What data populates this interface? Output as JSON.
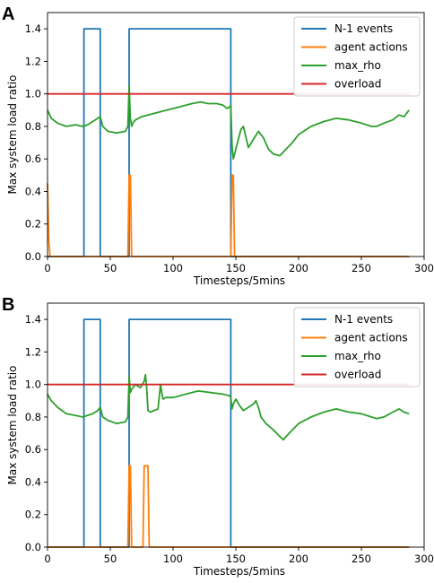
{
  "chart_data": [
    {
      "panel_label": "A",
      "type": "line",
      "xlabel": "Timesteps/5mins",
      "ylabel": "Max system load ratio",
      "xlim": [
        0,
        300
      ],
      "ylim": [
        0,
        1.5
      ],
      "xticks": [
        "0",
        "50",
        "100",
        "150",
        "200",
        "250",
        "300"
      ],
      "yticks": [
        "0.0",
        "0.2",
        "0.4",
        "0.6",
        "0.8",
        "1.0",
        "1.2",
        "1.4"
      ],
      "legend_position": "top-right",
      "series": [
        {
          "name": "N-1 events",
          "color": "#1f77b4",
          "x": [
            0,
            29,
            29,
            42,
            42,
            65,
            65,
            146,
            146,
            288
          ],
          "y": [
            0,
            0,
            1.4,
            1.4,
            0,
            0,
            1.4,
            1.4,
            0,
            0
          ]
        },
        {
          "name": "agent actions",
          "color": "#ff7f0e",
          "x": [
            0,
            1,
            2,
            64,
            65,
            66,
            67,
            146,
            147,
            148,
            149,
            288
          ],
          "y": [
            0.45,
            0.1,
            0,
            0,
            0.5,
            0.5,
            0,
            0,
            0.5,
            0.5,
            0,
            0
          ]
        },
        {
          "name": "max_rho",
          "color": "#2ca02c",
          "x": [
            0,
            3,
            8,
            15,
            22,
            28,
            32,
            36,
            40,
            42,
            44,
            48,
            55,
            62,
            64,
            65,
            66,
            67,
            68,
            70,
            75,
            85,
            95,
            105,
            115,
            122,
            128,
            135,
            140,
            143,
            145,
            146,
            147,
            148,
            150,
            152,
            154,
            156,
            160,
            164,
            168,
            172,
            176,
            180,
            185,
            190,
            195,
            200,
            210,
            220,
            230,
            240,
            250,
            258,
            262,
            268,
            275,
            280,
            284,
            286,
            288
          ],
          "y": [
            0.9,
            0.85,
            0.82,
            0.8,
            0.81,
            0.8,
            0.81,
            0.83,
            0.85,
            0.86,
            0.8,
            0.77,
            0.76,
            0.77,
            0.8,
            1.05,
            0.85,
            0.8,
            0.82,
            0.84,
            0.86,
            0.88,
            0.9,
            0.92,
            0.94,
            0.95,
            0.94,
            0.94,
            0.93,
            0.91,
            0.92,
            0.93,
            0.68,
            0.6,
            0.66,
            0.72,
            0.78,
            0.8,
            0.67,
            0.72,
            0.77,
            0.73,
            0.66,
            0.63,
            0.62,
            0.66,
            0.7,
            0.75,
            0.8,
            0.83,
            0.85,
            0.84,
            0.82,
            0.8,
            0.8,
            0.82,
            0.84,
            0.87,
            0.86,
            0.88,
            0.9
          ]
        },
        {
          "name": "overload",
          "color": "#d62728",
          "x": [
            0,
            288
          ],
          "y": [
            1.0,
            1.0
          ]
        }
      ]
    },
    {
      "panel_label": "B",
      "type": "line",
      "xlabel": "Timesteps/5mins",
      "ylabel": "Max system load ratio",
      "xlim": [
        0,
        300
      ],
      "ylim": [
        0,
        1.5
      ],
      "xticks": [
        "0",
        "50",
        "100",
        "150",
        "200",
        "250",
        "300"
      ],
      "yticks": [
        "0.0",
        "0.2",
        "0.4",
        "0.6",
        "0.8",
        "1.0",
        "1.2",
        "1.4"
      ],
      "legend_position": "top-right",
      "series": [
        {
          "name": "N-1 events",
          "color": "#1f77b4",
          "x": [
            0,
            29,
            29,
            42,
            42,
            65,
            65,
            146,
            146,
            288
          ],
          "y": [
            0,
            0,
            1.4,
            1.4,
            0,
            0,
            1.4,
            1.4,
            0,
            0
          ]
        },
        {
          "name": "agent actions",
          "color": "#ff7f0e",
          "x": [
            0,
            64,
            65,
            66,
            67,
            76,
            77,
            80,
            81,
            288
          ],
          "y": [
            0,
            0,
            0.5,
            0.5,
            0,
            0,
            0.5,
            0.5,
            0,
            0
          ]
        },
        {
          "name": "max_rho",
          "color": "#2ca02c",
          "x": [
            0,
            3,
            8,
            15,
            22,
            28,
            32,
            36,
            40,
            42,
            44,
            48,
            55,
            62,
            64,
            65,
            66,
            67,
            70,
            74,
            77,
            78,
            79,
            80,
            82,
            88,
            90,
            91,
            92,
            94,
            100,
            110,
            120,
            130,
            140,
            145,
            146,
            147,
            148,
            150,
            153,
            156,
            160,
            164,
            166,
            168,
            170,
            174,
            180,
            185,
            188,
            190,
            195,
            200,
            210,
            220,
            230,
            240,
            250,
            258,
            262,
            268,
            275,
            280,
            284,
            288
          ],
          "y": [
            0.94,
            0.9,
            0.86,
            0.82,
            0.81,
            0.8,
            0.81,
            0.82,
            0.84,
            0.86,
            0.8,
            0.78,
            0.76,
            0.77,
            0.8,
            1.05,
            0.95,
            0.97,
            1.0,
            0.98,
            1.02,
            1.06,
            0.98,
            0.84,
            0.83,
            0.85,
            1.0,
            0.95,
            0.91,
            0.92,
            0.92,
            0.94,
            0.96,
            0.95,
            0.94,
            0.93,
            0.92,
            0.85,
            0.88,
            0.91,
            0.87,
            0.84,
            0.86,
            0.88,
            0.9,
            0.86,
            0.8,
            0.76,
            0.72,
            0.68,
            0.66,
            0.68,
            0.72,
            0.76,
            0.8,
            0.83,
            0.85,
            0.83,
            0.82,
            0.8,
            0.79,
            0.8,
            0.83,
            0.85,
            0.83,
            0.82
          ]
        },
        {
          "name": "overload",
          "color": "#d62728",
          "x": [
            0,
            288
          ],
          "y": [
            1.0,
            1.0
          ]
        }
      ]
    }
  ]
}
